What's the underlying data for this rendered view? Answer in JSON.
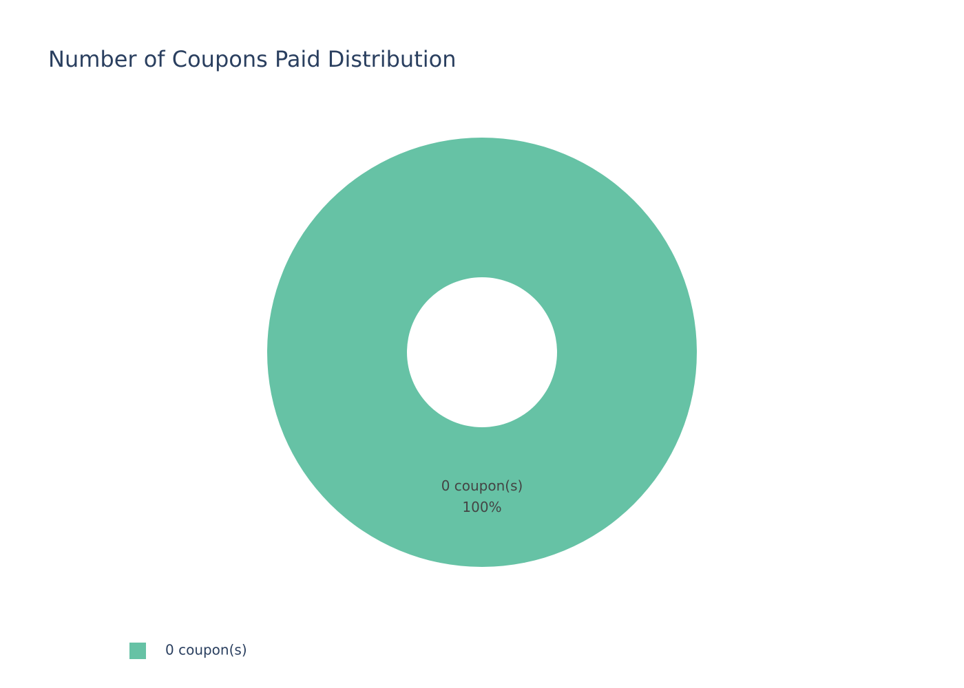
{
  "chart_data": {
    "type": "pie",
    "title": "Number of Coupons Paid Distribution",
    "categories": [
      "0 coupon(s)"
    ],
    "values": [
      100
    ],
    "value_labels": [
      "100%"
    ],
    "colors": [
      "#66c2a5"
    ],
    "legend": "bottom-left"
  }
}
